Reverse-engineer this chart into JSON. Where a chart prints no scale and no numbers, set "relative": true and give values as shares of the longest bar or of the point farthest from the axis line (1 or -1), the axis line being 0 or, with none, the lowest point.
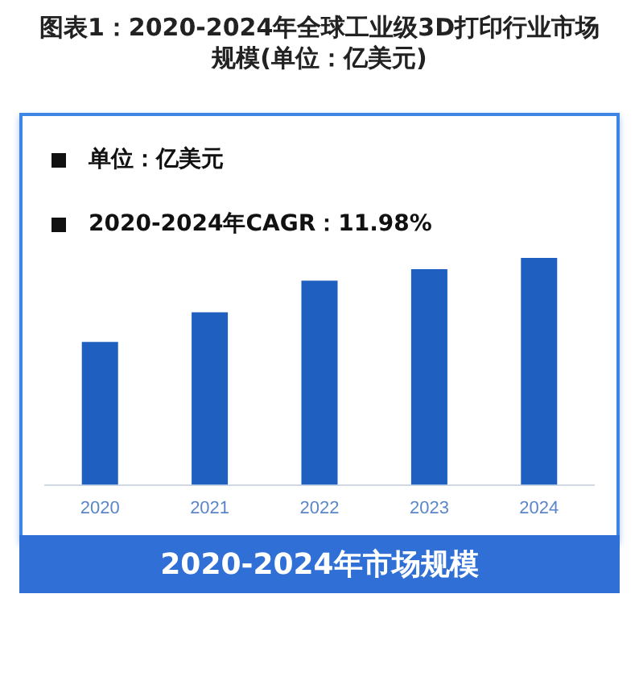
{
  "chart_data": {
    "type": "bar",
    "title": "图表1：2020-2024年全球工业级3D打印行业市场规模(单位：亿美元)",
    "xlabel": "2020-2024年市场规模",
    "annotations": [
      "单位：亿美元",
      "2020-2024年CAGR：11.98%"
    ],
    "categories": [
      "2020",
      "2021",
      "2022",
      "2023",
      "2024"
    ],
    "values": [
      0.63,
      0.76,
      0.9,
      0.95,
      1
    ],
    "color": "#1f5fbf",
    "relative": true
  }
}
